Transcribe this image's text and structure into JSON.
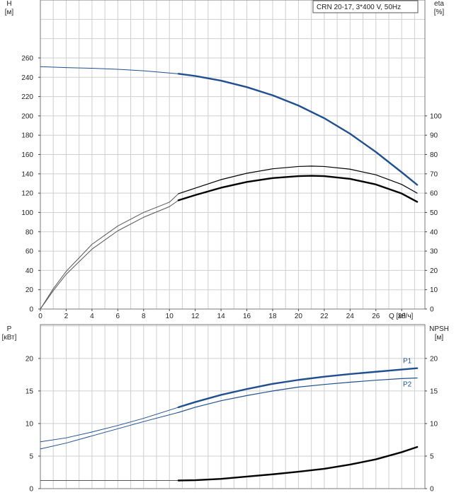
{
  "title": "CRN 20-17, 3*400 V, 50Hz",
  "colors": {
    "blue": "#1f4f8f",
    "black": "#000000",
    "gray": "#555555",
    "grid": "#cfcfcf",
    "frame": "#7a7a7a"
  },
  "chart_data": [
    {
      "type": "line",
      "name": "head-efficiency",
      "x_label": "Q [м³/ч]",
      "x_ticks": [
        0,
        2,
        4,
        6,
        8,
        10,
        12,
        14,
        16,
        18,
        20,
        22,
        24,
        26,
        28
      ],
      "xlim": [
        0,
        29.8
      ],
      "y_left_label_top": "H",
      "y_left_label_unit": "[м]",
      "y_left_ticks": [
        0,
        20,
        40,
        60,
        80,
        100,
        120,
        140,
        160,
        180,
        200,
        220,
        240,
        260
      ],
      "ylim_left": [
        0,
        320
      ],
      "y_right_label_top": "eta",
      "y_right_label_unit": "[%]",
      "y_right_ticks": [
        0,
        10,
        20,
        30,
        40,
        50,
        60,
        70,
        80,
        90,
        100
      ],
      "ylim_right": [
        0,
        160
      ],
      "series": [
        {
          "name": "H (extended)",
          "axis": "left",
          "color": "#1f4f8f",
          "width": 1,
          "x": [
            0,
            2,
            4,
            6,
            8,
            10,
            10.7
          ],
          "y": [
            251,
            250,
            249.3,
            248.2,
            246.7,
            244.4,
            243.6
          ]
        },
        {
          "name": "H",
          "axis": "left",
          "color": "#1f4f8f",
          "width": 2.4,
          "x": [
            10.7,
            12,
            14,
            16,
            18,
            20,
            22,
            24,
            26,
            28,
            29.2
          ],
          "y": [
            243.6,
            241.3,
            236.5,
            229.8,
            221.3,
            210.7,
            197.6,
            181.5,
            162.6,
            141.6,
            128.6
          ]
        },
        {
          "name": "eta upper (extended)",
          "axis": "right",
          "color": "#555555",
          "width": 1,
          "x": [
            0,
            1,
            2,
            4,
            6,
            8,
            10,
            10.7
          ],
          "y": [
            0,
            10.5,
            19.5,
            33.5,
            43,
            50,
            55.3,
            59.7
          ]
        },
        {
          "name": "eta upper",
          "axis": "right",
          "color": "#000000",
          "width": 1.2,
          "x": [
            10.7,
            12,
            14,
            16,
            18,
            20,
            21,
            22,
            24,
            26,
            28,
            29.2
          ],
          "y": [
            59.7,
            62.6,
            67,
            70.3,
            72.6,
            73.8,
            74,
            73.8,
            72.4,
            69.5,
            64.5,
            60
          ]
        },
        {
          "name": "eta (extended)",
          "axis": "right",
          "color": "#555555",
          "width": 1,
          "x": [
            0,
            1,
            2,
            4,
            6,
            8,
            10,
            10.7
          ],
          "y": [
            0,
            9.5,
            18,
            31,
            40.5,
            47.5,
            53,
            56.3
          ]
        },
        {
          "name": "eta",
          "axis": "right",
          "color": "#000000",
          "width": 2.4,
          "x": [
            10.7,
            12,
            14,
            16,
            18,
            20,
            21,
            22,
            24,
            26,
            28,
            29.2
          ],
          "y": [
            56.3,
            59,
            62.8,
            65.8,
            67.8,
            68.8,
            69,
            68.8,
            67.4,
            64.5,
            59.8,
            55.5
          ]
        }
      ]
    },
    {
      "type": "line",
      "name": "power-npsh",
      "xlim": [
        0,
        29.8
      ],
      "y_left_label_top": "P",
      "y_left_label_unit": "[кВт]",
      "y_left_ticks": [
        0,
        5,
        10,
        15,
        20
      ],
      "ylim_left": [
        0,
        25.2
      ],
      "y_right_label_top": "NPSH",
      "y_right_label_unit": "[м]",
      "y_right_ticks": [
        0,
        5,
        10,
        15,
        20
      ],
      "ylim_right": [
        0,
        25.2
      ],
      "series": [
        {
          "name": "P1 (extended)",
          "axis": "left",
          "color": "#1f4f8f",
          "width": 1,
          "x": [
            0,
            2,
            4,
            6,
            8,
            10.7
          ],
          "y": [
            7.2,
            7.8,
            8.7,
            9.7,
            10.8,
            12.5
          ]
        },
        {
          "name": "P1",
          "label": "P1",
          "axis": "left",
          "color": "#1f4f8f",
          "width": 2.4,
          "x": [
            10.7,
            12,
            14,
            16,
            18,
            20,
            22,
            24,
            26,
            28,
            29.2
          ],
          "y": [
            12.5,
            13.3,
            14.4,
            15.3,
            16.1,
            16.7,
            17.2,
            17.6,
            17.95,
            18.3,
            18.5
          ]
        },
        {
          "name": "P2 (extended)",
          "axis": "left",
          "color": "#1f4f8f",
          "width": 1,
          "x": [
            0,
            2,
            4,
            6,
            8,
            10.7
          ],
          "y": [
            6.1,
            7,
            8.1,
            9.2,
            10.3,
            11.7
          ]
        },
        {
          "name": "P2",
          "label": "P2",
          "axis": "left",
          "color": "#1f4f8f",
          "width": 1.2,
          "x": [
            10.7,
            12,
            14,
            16,
            18,
            20,
            22,
            24,
            26,
            28,
            29.2
          ],
          "y": [
            11.7,
            12.5,
            13.5,
            14.3,
            15,
            15.6,
            16,
            16.35,
            16.65,
            16.9,
            17
          ]
        },
        {
          "name": "NPSH (extended)",
          "axis": "right",
          "color": "#555555",
          "width": 1,
          "x": [
            0,
            10.7
          ],
          "y": [
            1.25,
            1.25
          ]
        },
        {
          "name": "NPSH",
          "axis": "right",
          "color": "#000000",
          "width": 2.4,
          "x": [
            10.7,
            12,
            14,
            16,
            18,
            20,
            22,
            24,
            26,
            28,
            29.2
          ],
          "y": [
            1.25,
            1.3,
            1.5,
            1.85,
            2.2,
            2.6,
            3.05,
            3.7,
            4.5,
            5.6,
            6.4
          ]
        }
      ]
    }
  ]
}
